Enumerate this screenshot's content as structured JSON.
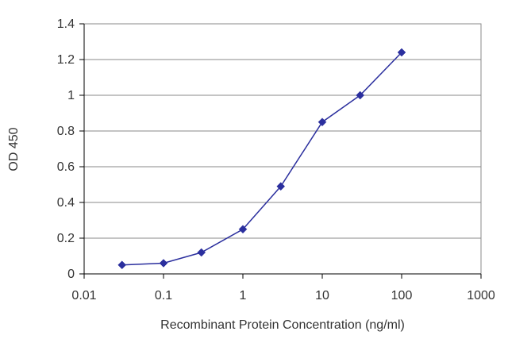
{
  "chart_data": {
    "type": "line",
    "title": "",
    "xlabel": "Recombinant Protein Concentration (ng/ml)",
    "ylabel": "OD 450",
    "xscale": "log",
    "xlim": [
      0.01,
      1000
    ],
    "ylim": [
      0,
      1.4
    ],
    "grid": "horizontal",
    "x_tick_labels": [
      "0.01",
      "0.1",
      "1",
      "10",
      "100",
      "1000"
    ],
    "x_tick_values": [
      0.01,
      0.1,
      1,
      10,
      100,
      1000
    ],
    "y_tick_labels": [
      "0",
      "0.2",
      "0.4",
      "0.6",
      "0.8",
      "1",
      "1.2",
      "1.4"
    ],
    "y_tick_values": [
      0,
      0.2,
      0.4,
      0.6,
      0.8,
      1.0,
      1.2,
      1.4
    ],
    "series": [
      {
        "color": "#2b2f9e",
        "marker": "diamond",
        "x": [
          0.03,
          0.1,
          0.3,
          1,
          3,
          10,
          30,
          100
        ],
        "y": [
          0.05,
          0.06,
          0.12,
          0.25,
          0.49,
          0.85,
          1.0,
          1.24
        ]
      }
    ]
  }
}
